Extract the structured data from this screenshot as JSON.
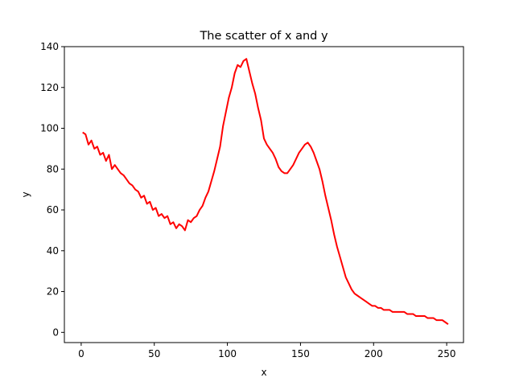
{
  "chart_data": {
    "type": "line",
    "title": "The scatter of x and y",
    "xlabel": "x",
    "ylabel": "y",
    "xlim": [
      -11.5,
      261.5
    ],
    "ylim": [
      -5,
      140
    ],
    "xticks": [
      0,
      50,
      100,
      150,
      200,
      250
    ],
    "yticks": [
      0,
      20,
      40,
      60,
      80,
      100,
      120,
      140
    ],
    "grid": false,
    "series": [
      {
        "color": "#ff0000",
        "x": [
          1,
          3,
          5,
          7,
          9,
          11,
          13,
          15,
          17,
          19,
          21,
          23,
          25,
          27,
          29,
          31,
          33,
          35,
          37,
          39,
          41,
          43,
          45,
          47,
          49,
          51,
          53,
          55,
          57,
          59,
          61,
          63,
          65,
          67,
          69,
          71,
          73,
          75,
          77,
          79,
          81,
          83,
          85,
          87,
          89,
          91,
          93,
          95,
          97,
          99,
          101,
          103,
          105,
          107,
          109,
          111,
          113,
          115,
          117,
          119,
          121,
          123,
          125,
          127,
          129,
          131,
          133,
          135,
          137,
          139,
          141,
          143,
          145,
          147,
          149,
          151,
          153,
          155,
          157,
          159,
          161,
          163,
          165,
          167,
          169,
          171,
          173,
          175,
          177,
          179,
          181,
          183,
          185,
          187,
          189,
          191,
          193,
          195,
          197,
          199,
          201,
          203,
          205,
          207,
          209,
          211,
          213,
          215,
          217,
          219,
          221,
          223,
          225,
          227,
          229,
          231,
          233,
          235,
          237,
          239,
          241,
          243,
          245,
          247,
          249,
          251
        ],
        "y": [
          98,
          97,
          92,
          94,
          90,
          91,
          87,
          88,
          84,
          87,
          80,
          82,
          80,
          78,
          77,
          75,
          73,
          72,
          70,
          69,
          66,
          67,
          63,
          64,
          60,
          61,
          57,
          58,
          56,
          57,
          53,
          54,
          51,
          53,
          52,
          50,
          55,
          54,
          56,
          57,
          60,
          62,
          66,
          69,
          74,
          79,
          85,
          91,
          101,
          108,
          115,
          120,
          127,
          131,
          130,
          133,
          134,
          128,
          122,
          117,
          110,
          104,
          95,
          92,
          90,
          88,
          85,
          81,
          79,
          78,
          78,
          80,
          82,
          85,
          88,
          90,
          92,
          93,
          91,
          88,
          84,
          80,
          74,
          67,
          61,
          55,
          48,
          42,
          37,
          32,
          27,
          24,
          21,
          19,
          18,
          17,
          16,
          15,
          14,
          13,
          13,
          12,
          12,
          11,
          11,
          11,
          10,
          10,
          10,
          10,
          10,
          9,
          9,
          9,
          8,
          8,
          8,
          8,
          7,
          7,
          7,
          6,
          6,
          6,
          5,
          4
        ]
      }
    ]
  }
}
